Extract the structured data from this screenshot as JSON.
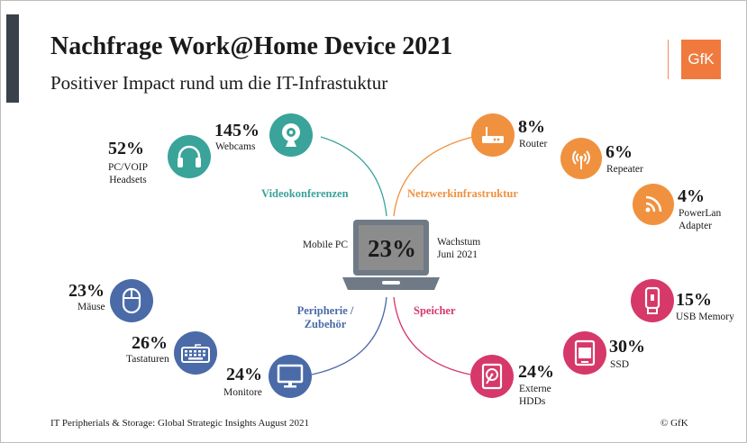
{
  "header": {
    "title": "Nachfrage Work@Home Device 2021",
    "subtitle": "Positiver Impact rund um die IT-Infrastuktur",
    "logo_text": "GfK"
  },
  "center": {
    "label_left": "Mobile PC",
    "value": "23%",
    "label_right_line1": "Wachstum",
    "label_right_line2": "Juni 2021"
  },
  "categories": {
    "video": "Videokonferenzen",
    "network": "Netzwerkinfrastruktur",
    "periph_line1": "Peripherie /",
    "periph_line2": "Zubehör",
    "storage": "Speicher"
  },
  "chart_data": {
    "type": "table",
    "title": "Nachfrage Work@Home Device 2021",
    "subtitle": "Positiver Impact rund um die IT-Infrastuktur",
    "center": {
      "device": "Mobile PC",
      "growth_percent": 23,
      "note": "Wachstum Juni 2021"
    },
    "groups": [
      {
        "name": "Videokonferenzen",
        "color": "#3aa39a",
        "items": [
          {
            "device": "PC/VOIP Headsets",
            "growth_percent": 52
          },
          {
            "device": "Webcams",
            "growth_percent": 145
          }
        ]
      },
      {
        "name": "Netzwerkinfrastruktur",
        "color": "#f0913f",
        "items": [
          {
            "device": "Router",
            "growth_percent": 8
          },
          {
            "device": "Repeater",
            "growth_percent": 6
          },
          {
            "device": "PowerLan Adapter",
            "growth_percent": 4
          }
        ]
      },
      {
        "name": "Peripherie / Zubehör",
        "color": "#4a6aa8",
        "items": [
          {
            "device": "Mäuse",
            "growth_percent": 23
          },
          {
            "device": "Tastaturen",
            "growth_percent": 26
          },
          {
            "device": "Monitore",
            "growth_percent": 24
          }
        ]
      },
      {
        "name": "Speicher",
        "color": "#d6386a",
        "items": [
          {
            "device": "USB Memory",
            "growth_percent": 15
          },
          {
            "device": "SSD",
            "growth_percent": 30
          },
          {
            "device": "Externe HDDs",
            "growth_percent": 24
          }
        ]
      }
    ]
  },
  "items": {
    "headsets": {
      "pct": "52%",
      "line1": "PC/VOIP",
      "line2": "Headsets",
      "icon": "headset-icon"
    },
    "webcams": {
      "pct": "145%",
      "line1": "Webcams",
      "icon": "webcam-icon"
    },
    "router": {
      "pct": "8%",
      "line1": "Router",
      "icon": "router-icon"
    },
    "repeater": {
      "pct": "6%",
      "line1": "Repeater",
      "icon": "repeater-icon"
    },
    "powerlan": {
      "pct": "4%",
      "line1": "PowerLan",
      "line2": "Adapter",
      "icon": "powerlan-icon"
    },
    "mouse": {
      "pct": "23%",
      "line1": "Mäuse",
      "icon": "mouse-icon"
    },
    "keyboard": {
      "pct": "26%",
      "line1": "Tastaturen",
      "icon": "keyboard-icon"
    },
    "monitor": {
      "pct": "24%",
      "line1": "Monitore",
      "icon": "monitor-icon"
    },
    "usb": {
      "pct": "15%",
      "line1": "USB Memory",
      "icon": "usb-icon"
    },
    "ssd": {
      "pct": "30%",
      "line1": "SSD",
      "icon": "ssd-icon"
    },
    "hdd": {
      "pct": "24%",
      "line1": "Externe",
      "line2": "HDDs",
      "icon": "hdd-icon"
    }
  },
  "colors": {
    "video": "#3aa39a",
    "network": "#f0913f",
    "periph": "#4a6aa8",
    "storage": "#d6386a",
    "laptop": "#6f7a86"
  },
  "footer": {
    "source": "IT Peripherials & Storage: Global Strategic Insights August 2021",
    "copyright": "© GfK"
  }
}
